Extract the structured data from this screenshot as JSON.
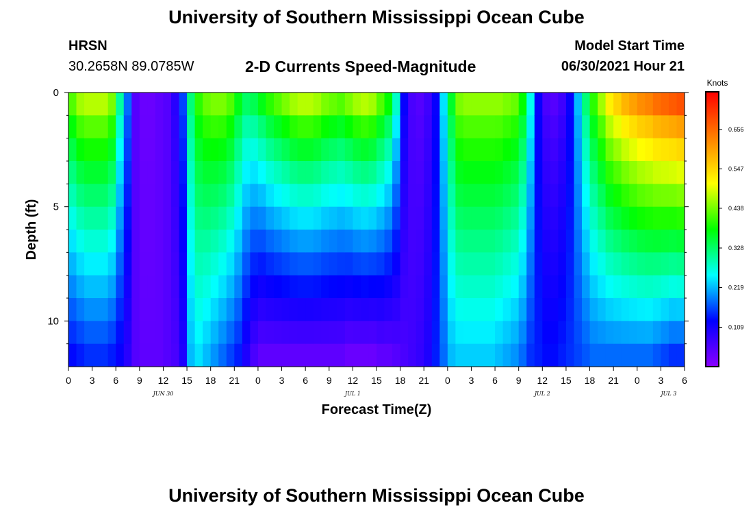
{
  "header": {
    "title_top": "University of Southern Mississippi Ocean Cube",
    "title_bottom": "University of Southern Mississippi Ocean Cube",
    "station_name": "HRSN",
    "station_coords": "30.2658N  89.0785W",
    "plot_title": "2-D Currents Speed-Magnitude",
    "model_label": "Model Start Time",
    "model_time": "06/30/2021 Hour 21"
  },
  "chart_data": {
    "type": "heatmap",
    "title": "2-D Currents Speed-Magnitude",
    "xlabel": "Forecast Time(Z)",
    "ylabel": "Depth (ft)",
    "units": "Knots",
    "x_start_hour": 0,
    "x_end_hour": 78,
    "x_tick_hours": [
      0,
      3,
      6,
      9,
      12,
      15,
      18,
      21,
      24,
      27,
      30,
      33,
      36,
      39,
      42,
      45,
      48,
      51,
      54,
      57,
      60,
      63,
      66,
      69,
      72,
      75,
      78
    ],
    "x_tick_labels": [
      "0",
      "3",
      "6",
      "9",
      "12",
      "15",
      "18",
      "21",
      "0",
      "3",
      "6",
      "9",
      "12",
      "15",
      "18",
      "21",
      "0",
      "3",
      "6",
      "9",
      "12",
      "15",
      "18",
      "21",
      "0",
      "3",
      "6"
    ],
    "date_labels": [
      {
        "hour": 12,
        "label": "JUN 30"
      },
      {
        "hour": 36,
        "label": "JUL 1"
      },
      {
        "hour": 60,
        "label": "JUL 2"
      },
      {
        "hour": 76,
        "label": "JUL 3"
      }
    ],
    "ylim": [
      0,
      12
    ],
    "y_tick_values": [
      0,
      5,
      10
    ],
    "y_tick_labels": [
      "0",
      "5",
      "10"
    ],
    "y_minor_tick_values": [
      1,
      2,
      3,
      4,
      6,
      7,
      8,
      9,
      11
    ],
    "colorbar": {
      "min": 0.0,
      "max": 0.76,
      "tick_values": [
        0.109,
        0.219,
        0.328,
        0.438,
        0.547,
        0.656
      ],
      "tick_labels": [
        "0.109",
        "0.219",
        "0.328",
        "0.438",
        "0.547",
        "0.656"
      ],
      "colors": [
        "#8a00ff",
        "#0000ff",
        "#00ffff",
        "#00ff00",
        "#ffff00",
        "#ff8000",
        "#ff0000"
      ]
    },
    "depth_levels": [
      0.5,
      1.5,
      2.5,
      3.5,
      4.5,
      5.5,
      6.5,
      7.5,
      8.5,
      9.5,
      10.5,
      11.5
    ],
    "speed_profile": {
      "description": "speed (knots) by forecast hour; depth attenuation modulated per phase",
      "surface_hours": [
        0,
        1,
        2,
        3,
        4,
        5,
        6,
        7,
        8,
        9,
        10,
        11,
        12,
        13,
        14,
        15,
        16,
        17,
        18,
        19,
        20,
        21,
        22,
        23,
        24,
        25,
        26,
        27,
        28,
        29,
        30,
        31,
        32,
        33,
        34,
        35,
        36,
        37,
        38,
        39,
        40,
        41,
        42,
        43,
        44,
        45,
        46,
        47,
        48,
        49,
        50,
        51,
        52,
        53,
        54,
        55,
        56,
        57,
        58,
        59,
        60,
        61,
        62,
        63,
        64,
        65,
        66,
        67,
        68,
        69,
        70,
        71,
        72,
        73,
        74,
        75,
        76,
        77,
        78
      ],
      "surface_speed": [
        0.42,
        0.46,
        0.47,
        0.47,
        0.47,
        0.44,
        0.3,
        0.18,
        0.05,
        0.03,
        0.03,
        0.04,
        0.05,
        0.09,
        0.16,
        0.32,
        0.4,
        0.43,
        0.44,
        0.44,
        0.42,
        0.37,
        0.33,
        0.34,
        0.37,
        0.4,
        0.42,
        0.44,
        0.46,
        0.47,
        0.47,
        0.46,
        0.44,
        0.43,
        0.42,
        0.44,
        0.46,
        0.47,
        0.46,
        0.42,
        0.38,
        0.28,
        0.12,
        0.06,
        0.05,
        0.07,
        0.12,
        0.24,
        0.36,
        0.44,
        0.45,
        0.45,
        0.45,
        0.45,
        0.45,
        0.44,
        0.43,
        0.38,
        0.26,
        0.12,
        0.06,
        0.05,
        0.07,
        0.12,
        0.22,
        0.32,
        0.4,
        0.46,
        0.52,
        0.55,
        0.58,
        0.6,
        0.62,
        0.63,
        0.65,
        0.66,
        0.67,
        0.68,
        0.68
      ],
      "bottom_speed": [
        0.13,
        0.14,
        0.15,
        0.15,
        0.15,
        0.14,
        0.12,
        0.09,
        0.05,
        0.04,
        0.04,
        0.04,
        0.05,
        0.06,
        0.1,
        0.22,
        0.24,
        0.22,
        0.2,
        0.18,
        0.16,
        0.14,
        0.1,
        0.06,
        0.04,
        0.04,
        0.04,
        0.04,
        0.04,
        0.04,
        0.04,
        0.04,
        0.04,
        0.04,
        0.04,
        0.03,
        0.03,
        0.03,
        0.03,
        0.04,
        0.04,
        0.05,
        0.06,
        0.07,
        0.08,
        0.1,
        0.14,
        0.18,
        0.22,
        0.23,
        0.23,
        0.23,
        0.23,
        0.23,
        0.22,
        0.21,
        0.2,
        0.18,
        0.15,
        0.14,
        0.13,
        0.13,
        0.14,
        0.15,
        0.16,
        0.17,
        0.18,
        0.18,
        0.18,
        0.18,
        0.18,
        0.18,
        0.18,
        0.18,
        0.17,
        0.16,
        0.15,
        0.15,
        0.15
      ]
    }
  }
}
